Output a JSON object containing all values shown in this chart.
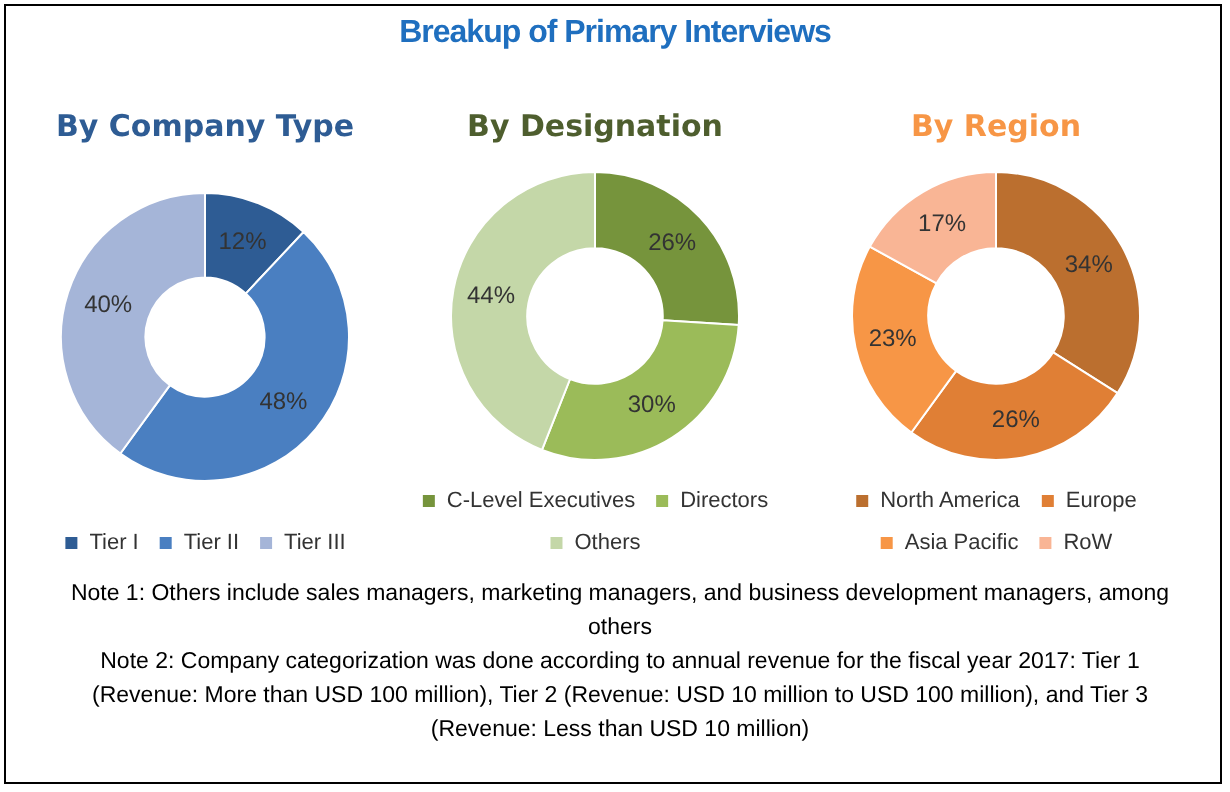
{
  "chart_data": [
    {
      "type": "other",
      "title": "Breakup of Primary Interviews"
    },
    {
      "type": "donut",
      "title": "By Company Type",
      "categories": [
        "Tier I",
        "Tier II",
        "Tier III"
      ],
      "values": [
        12,
        48,
        40
      ],
      "colors": [
        "#2e5c94",
        "#4a7fc1",
        "#a5b5d8"
      ],
      "value_labels": [
        "12%",
        "48%",
        "40%"
      ],
      "legend": "bottom"
    },
    {
      "type": "donut",
      "title": "By Designation",
      "categories": [
        "C-Level Executives",
        "Directors",
        "Others"
      ],
      "values": [
        26,
        30,
        44
      ],
      "colors": [
        "#76943c",
        "#9bbb59",
        "#c4d7a8"
      ],
      "value_labels": [
        "26%",
        "30%",
        "44%"
      ],
      "legend": "bottom"
    },
    {
      "type": "donut",
      "title": "By Region",
      "categories": [
        "North America",
        "Europe",
        "Asia Pacific",
        "RoW"
      ],
      "values": [
        34,
        26,
        23,
        17
      ],
      "colors": [
        "#bb6f2f",
        "#e07f35",
        "#f79646",
        "#f9b595"
      ],
      "value_labels": [
        "34%",
        "26%",
        "23%",
        "17%"
      ],
      "legend": "bottom"
    },
    {
      "type": "other",
      "annotations": [
        "Note 1: Others include sales managers, marketing managers, and business development managers, among others",
        "Note 2: Company categorization was done according to annual revenue for the fiscal year 2017: Tier 1 (Revenue: More than USD 100 million), Tier 2 (Revenue: USD 10 million to USD 100 million), and Tier 3 (Revenue: Less than USD 10 million)"
      ]
    }
  ]
}
